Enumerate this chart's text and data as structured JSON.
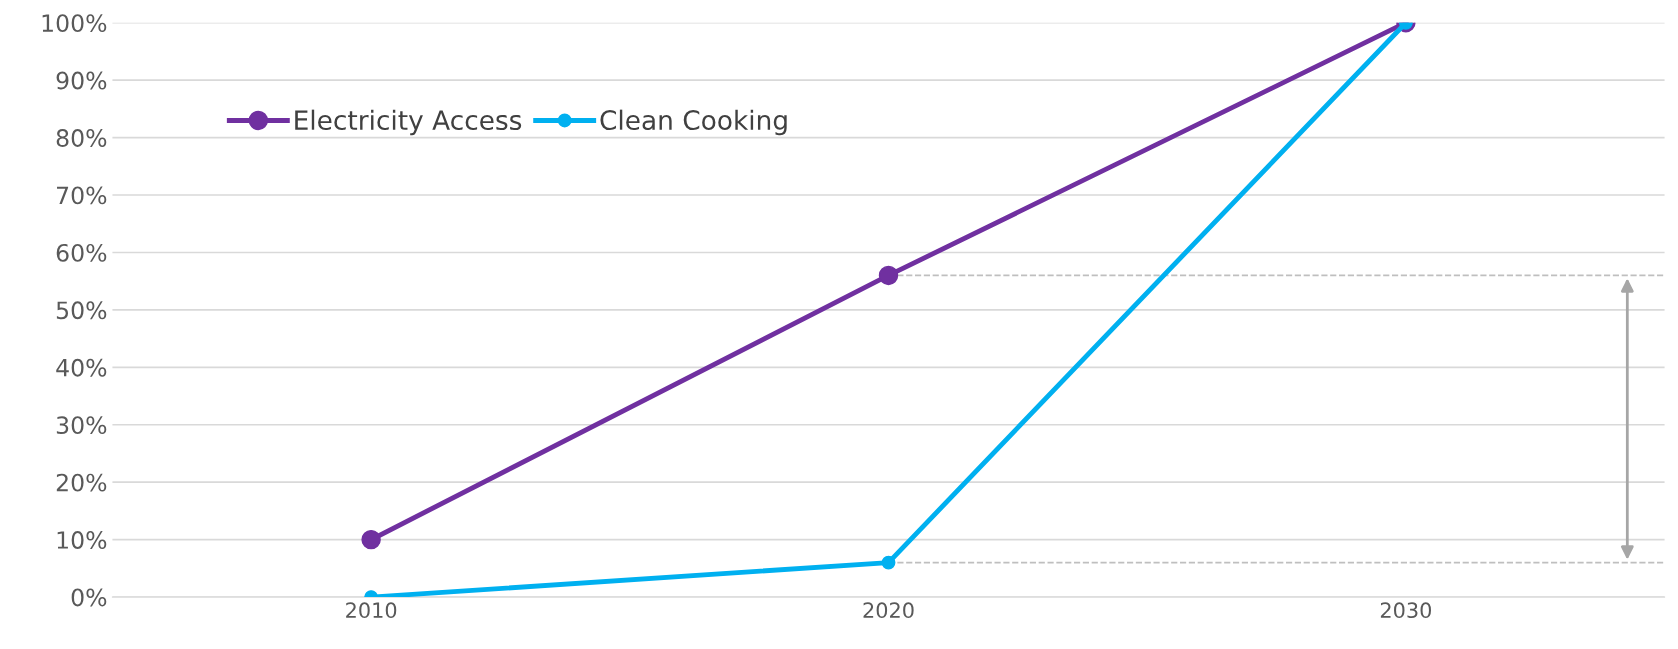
{
  "chart_data": {
    "type": "line",
    "x": [
      2010,
      2020,
      2030
    ],
    "xlim": [
      2005,
      2035
    ],
    "xticks": [
      2010,
      2020,
      2030
    ],
    "series": [
      {
        "name": "Electricity Access",
        "color": "#7030a0",
        "values": [
          10,
          56,
          100
        ]
      },
      {
        "name": "Clean Cooking",
        "color": "#00b0f0",
        "values": [
          0,
          6,
          100
        ]
      }
    ],
    "ylim": [
      0,
      100
    ],
    "yticks": [
      {
        "value": 0,
        "label": "0%"
      },
      {
        "value": 10,
        "label": "10%"
      },
      {
        "value": 20,
        "label": "20%"
      },
      {
        "value": 30,
        "label": "30%"
      },
      {
        "value": 40,
        "label": "40%"
      },
      {
        "value": 50,
        "label": "50%"
      },
      {
        "value": 60,
        "label": "60%"
      },
      {
        "value": 70,
        "label": "70%"
      },
      {
        "value": 80,
        "label": "80%"
      },
      {
        "value": 90,
        "label": "90%"
      },
      {
        "value": 100,
        "label": "100%"
      }
    ],
    "ref_lines": [
      {
        "axis": "y",
        "value": 56,
        "color": "#bfbfbf",
        "line_style": "dashed"
      },
      {
        "axis": "y",
        "value": 6,
        "color": "#bfbfbf",
        "line_style": "dashed"
      }
    ],
    "grid": "y",
    "legend": "top left",
    "marker": "circle",
    "line_style": "solid"
  }
}
